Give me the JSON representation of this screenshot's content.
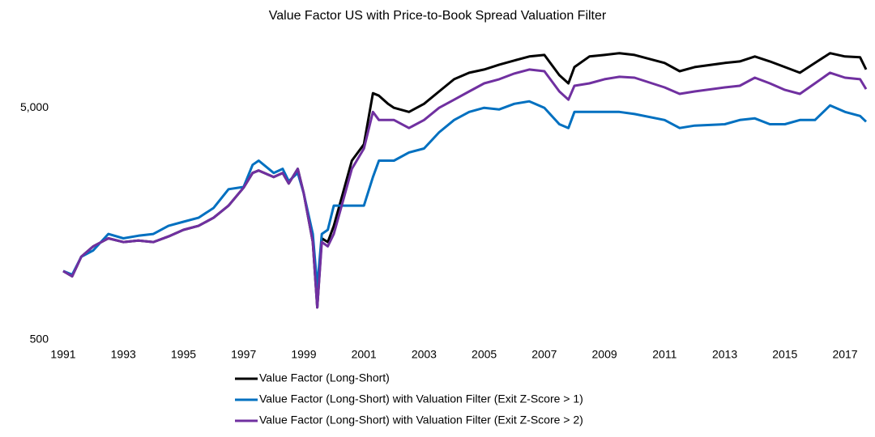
{
  "chart_data": {
    "type": "line",
    "title": "Value Factor US with Price-to-Book Spread Valuation Filter",
    "log_y": true,
    "grid": false,
    "legend": "bottom",
    "xlim": [
      1991,
      2017.7
    ],
    "xticks": [
      1991,
      1993,
      1995,
      1997,
      1999,
      2001,
      2003,
      2005,
      2007,
      2009,
      2011,
      2013,
      2015,
      2017
    ],
    "ylim": [
      500,
      9000
    ],
    "yticks": [
      500,
      {
        "value": 5000,
        "label": "5,000"
      }
    ],
    "x": [
      1991.0,
      1991.3,
      1991.6,
      1992.0,
      1992.5,
      1993.0,
      1993.5,
      1994.0,
      1994.5,
      1995.0,
      1995.5,
      1996.0,
      1996.5,
      1997.0,
      1997.3,
      1997.5,
      1998.0,
      1998.3,
      1998.5,
      1998.8,
      1999.0,
      1999.3,
      1999.45,
      1999.6,
      1999.8,
      2000.0,
      2000.3,
      2000.6,
      2001.0,
      2001.3,
      2001.5,
      2001.8,
      2002.0,
      2002.5,
      2003.0,
      2003.5,
      2004.0,
      2004.5,
      2005.0,
      2005.5,
      2006.0,
      2006.5,
      2007.0,
      2007.5,
      2007.8,
      2008.0,
      2008.5,
      2009.0,
      2009.5,
      2010.0,
      2011.0,
      2011.5,
      2012.0,
      2013.0,
      2013.5,
      2014.0,
      2014.5,
      2015.0,
      2015.5,
      2016.0,
      2016.5,
      2017.0,
      2017.5,
      2017.7
    ],
    "series": [
      {
        "name": "Value Factor (Long-Short)",
        "color": "#000000",
        "values": [
          990,
          940,
          1140,
          1265,
          1370,
          1320,
          1340,
          1320,
          1395,
          1490,
          1550,
          1680,
          1895,
          2265,
          2620,
          2685,
          2515,
          2620,
          2360,
          2730,
          2140,
          1320,
          690,
          1370,
          1320,
          1550,
          2140,
          2960,
          3480,
          5780,
          5640,
          5200,
          5000,
          4800,
          5200,
          5880,
          6640,
          7080,
          7310,
          7670,
          7990,
          8320,
          8450,
          6910,
          6370,
          7490,
          8320,
          8450,
          8600,
          8450,
          7800,
          7190,
          7490,
          7800,
          7920,
          8320,
          7920,
          7490,
          7080,
          7800,
          8600,
          8320,
          8250,
          7310
        ]
      },
      {
        "name": "Value Factor (Long-Short) with Valuation Filter (Exit Z-Score > 1)",
        "color": "#0070c0",
        "values": [
          990,
          955,
          1140,
          1215,
          1430,
          1370,
          1405,
          1430,
          1550,
          1615,
          1680,
          1850,
          2230,
          2280,
          2840,
          2960,
          2620,
          2730,
          2415,
          2620,
          2140,
          1430,
          845,
          1430,
          1490,
          1895,
          1895,
          1895,
          1895,
          2515,
          2960,
          2960,
          2960,
          3210,
          3340,
          3920,
          4430,
          4800,
          5000,
          4920,
          5200,
          5330,
          5000,
          4250,
          4090,
          4800,
          4800,
          4800,
          4800,
          4700,
          4430,
          4090,
          4190,
          4250,
          4430,
          4500,
          4250,
          4250,
          4430,
          4430,
          5120,
          4800,
          4610,
          4360
        ]
      },
      {
        "name": "Value Factor (Long-Short) with Valuation Filter (Exit Z-Score > 2)",
        "color": "#7030a0",
        "values": [
          990,
          940,
          1140,
          1265,
          1370,
          1320,
          1340,
          1320,
          1395,
          1490,
          1550,
          1680,
          1895,
          2265,
          2620,
          2685,
          2515,
          2620,
          2360,
          2730,
          2140,
          1320,
          690,
          1320,
          1265,
          1430,
          1975,
          2730,
          3340,
          4800,
          4430,
          4430,
          4430,
          4090,
          4430,
          5000,
          5420,
          5880,
          6370,
          6640,
          7020,
          7310,
          7190,
          5880,
          5420,
          6220,
          6370,
          6640,
          6800,
          6740,
          6120,
          5740,
          5880,
          6120,
          6220,
          6740,
          6370,
          5970,
          5740,
          6370,
          7080,
          6740,
          6640,
          6020
        ]
      }
    ]
  }
}
